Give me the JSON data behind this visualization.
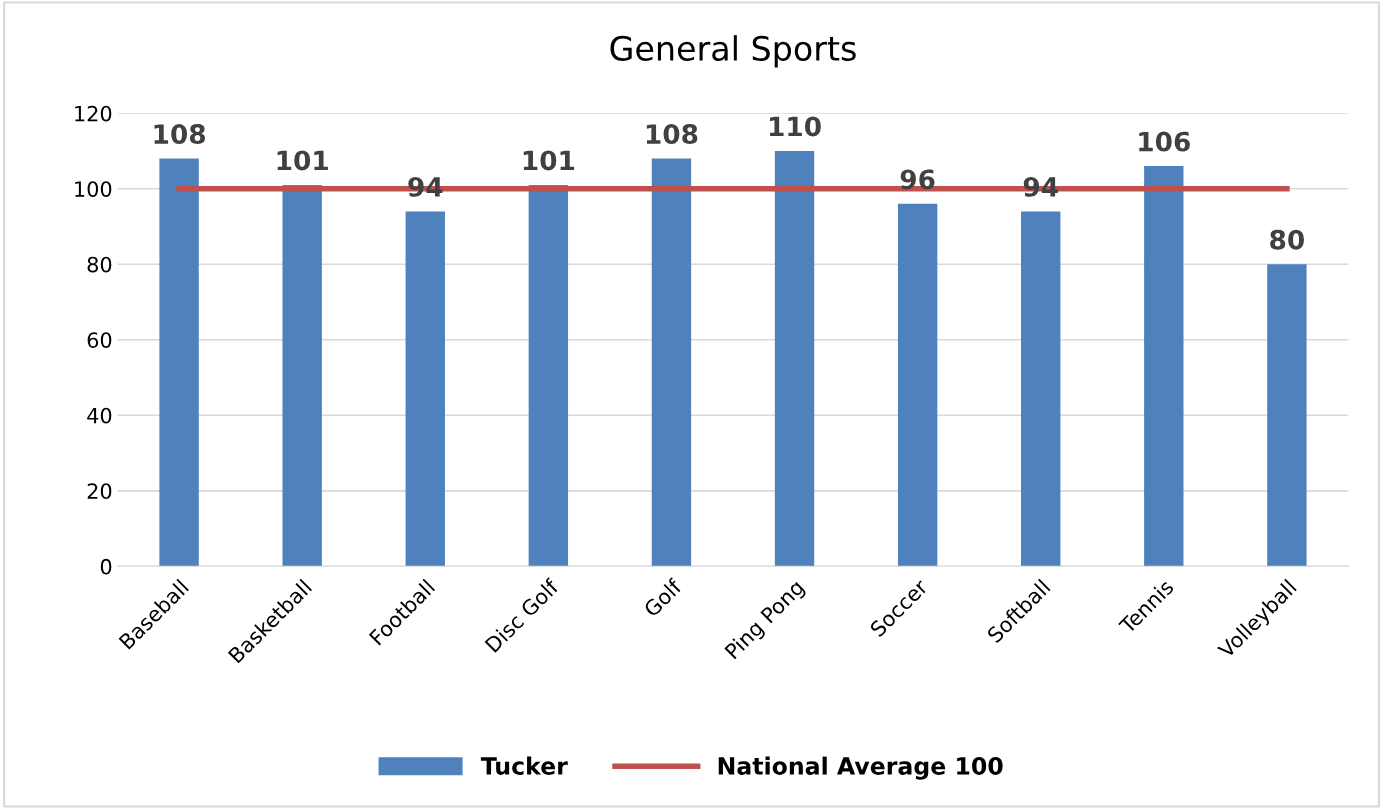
{
  "chart_data": {
    "type": "bar",
    "title": "General Sports",
    "categories": [
      "Baseball",
      "Basketball",
      "Football",
      "Disc Golf",
      "Golf",
      "Ping Pong",
      "Soccer",
      "Softball",
      "Tennis",
      "Volleyball"
    ],
    "series": [
      {
        "name": "Tucker",
        "color": "#4f81bd",
        "values": [
          108,
          101,
          94,
          101,
          108,
          110,
          96,
          94,
          106,
          80
        ],
        "value_labels": [
          "108",
          "101",
          "94",
          "101",
          "108",
          "110",
          "96",
          "94",
          "106",
          "80"
        ]
      },
      {
        "name": "National Average 100",
        "type": "line",
        "color": "#c0504d",
        "values": [
          100,
          100,
          100,
          100,
          100,
          100,
          100,
          100,
          100,
          100
        ]
      }
    ],
    "ylim": [
      0,
      120
    ],
    "yticks": [
      0,
      20,
      40,
      60,
      80,
      100,
      120
    ],
    "grid": "y",
    "legend": "bottom"
  }
}
